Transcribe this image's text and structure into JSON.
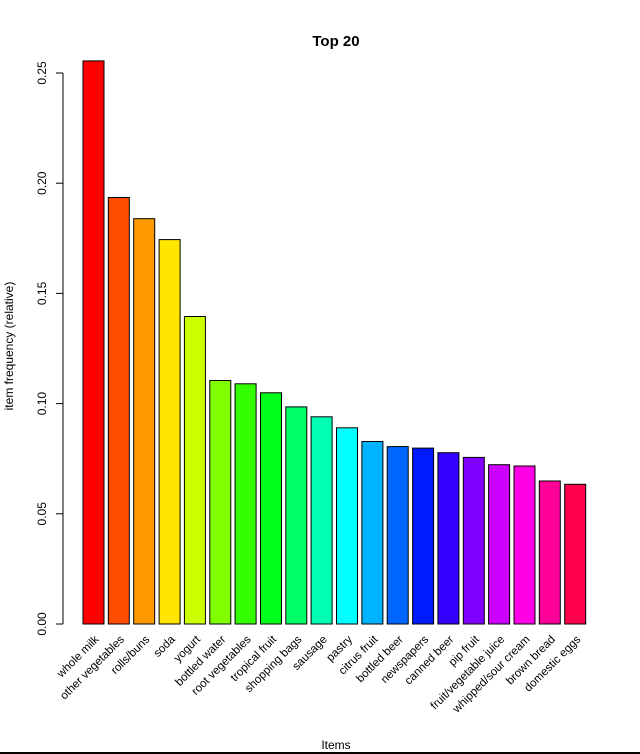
{
  "chart_data": {
    "type": "bar",
    "title": "Top 20",
    "xlabel": "Items",
    "ylabel": "item frequency (relative)",
    "ylim": [
      0,
      0.25
    ],
    "yticks": [
      "0.00",
      "0.05",
      "0.10",
      "0.15",
      "0.20",
      "0.25"
    ],
    "categories": [
      "whole milk",
      "other vegetables",
      "rolls/buns",
      "soda",
      "yogurt",
      "bottled water",
      "root vegetables",
      "tropical fruit",
      "shopping bags",
      "sausage",
      "pastry",
      "citrus fruit",
      "bottled beer",
      "newspapers",
      "canned beer",
      "pip fruit",
      "fruit/vegetable juice",
      "whipped/sour cream",
      "brown bread",
      "domestic eggs"
    ],
    "values": [
      0.2555,
      0.1935,
      0.1839,
      0.1744,
      0.1395,
      0.1105,
      0.109,
      0.1049,
      0.0985,
      0.094,
      0.089,
      0.0828,
      0.0805,
      0.0798,
      0.0777,
      0.0756,
      0.0723,
      0.0717,
      0.0649,
      0.0634
    ],
    "colors": [
      "#FF0000",
      "#FF4D00",
      "#FF9900",
      "#FFE500",
      "#CCFF00",
      "#80FF00",
      "#33FF00",
      "#00FF19",
      "#00FF66",
      "#00FFB2",
      "#00FFFF",
      "#00B3FF",
      "#0066FF",
      "#001AFF",
      "#3300FF",
      "#7F00FF",
      "#CC00FF",
      "#FF00E6",
      "#FF0099",
      "#FF004D"
    ],
    "grid": false,
    "legend": "none"
  }
}
